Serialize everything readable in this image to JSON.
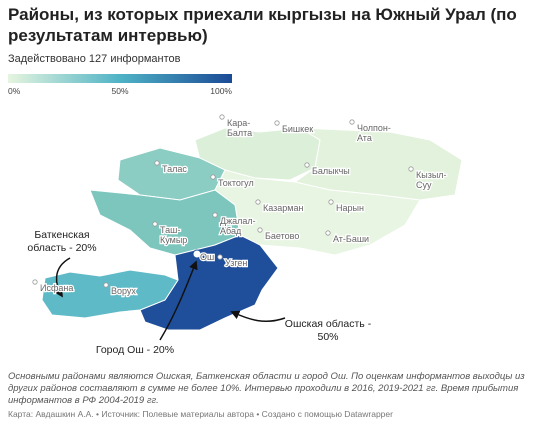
{
  "header": {
    "title": "Районы, из которых приехали кыргызы на Южный Урал (по результатам интервью)",
    "subtitle": "Задействовано 127 информантов"
  },
  "legend": {
    "ticks": [
      "0%",
      "50%",
      "100%"
    ]
  },
  "map": {
    "places": [
      {
        "lines": [
          "Кара-",
          "Балта"
        ]
      },
      {
        "lines": [
          "Бишкек"
        ]
      },
      {
        "lines": [
          "Чолпон-",
          "Ата"
        ]
      },
      {
        "lines": [
          "Талас"
        ]
      },
      {
        "lines": [
          "Токтогул"
        ]
      },
      {
        "lines": [
          "Балыкчы"
        ]
      },
      {
        "lines": [
          "Кызыл-",
          "Суу"
        ]
      },
      {
        "lines": [
          "Казарман"
        ]
      },
      {
        "lines": [
          "Нарын"
        ]
      },
      {
        "lines": [
          "Джалал-",
          "Абад"
        ]
      },
      {
        "lines": [
          "Баетово"
        ]
      },
      {
        "lines": [
          "Ат-Баши"
        ]
      },
      {
        "lines": [
          "Таш-",
          "Кумыр"
        ]
      },
      {
        "lines": [
          "Ош"
        ]
      },
      {
        "lines": [
          "Узген"
        ]
      },
      {
        "lines": [
          "Исфана"
        ]
      },
      {
        "lines": [
          "Ворух"
        ]
      }
    ],
    "annotations": [
      {
        "lines": [
          "Баткенская",
          "область - 20%"
        ]
      },
      {
        "lines": [
          "Ошская область -",
          "50%"
        ]
      },
      {
        "lines": [
          "Город Ош - 20%"
        ]
      }
    ]
  },
  "notes": "Основными районами являются Ошская, Баткенская области и город Ош. По оценкам информантов выходцы из других районов составляют в сумме не более 10%. Интервью проходили в 2016, 2019-2021 гг. Время прибытия информантов в РФ 2004-2019 гг.",
  "footer": "Карта: Авдашкин А.А. • Источник: Полевые материалы автора • Создано с помощью Datawrapper"
}
